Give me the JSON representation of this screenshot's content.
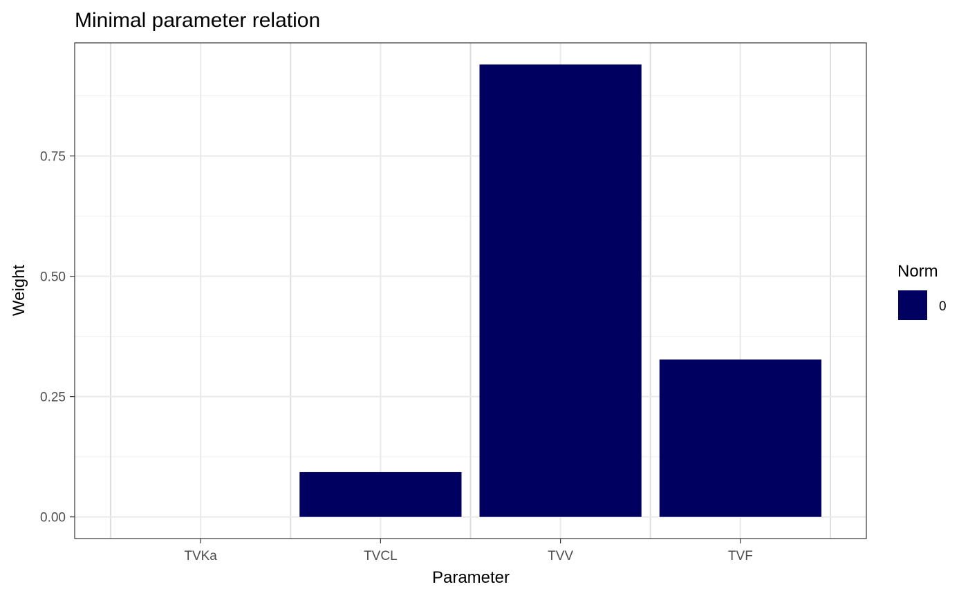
{
  "chart_data": {
    "type": "bar",
    "title": "Minimal parameter relation",
    "xlabel": "Parameter",
    "ylabel": "Weight",
    "categories": [
      "TVKa",
      "TVCL",
      "TVV",
      "TVF"
    ],
    "series": [
      {
        "name": "0",
        "values": [
          0.0,
          0.093,
          0.94,
          0.327
        ]
      }
    ],
    "ylim": [
      -0.045,
      0.985
    ],
    "yticks": [
      0.0,
      0.25,
      0.5,
      0.75
    ],
    "ytick_labels": [
      "0.00",
      "0.25",
      "0.50",
      "0.75"
    ],
    "grid": true,
    "bar_color": "#000060",
    "legend": {
      "title": "Norm",
      "position": "right",
      "items": [
        "0"
      ]
    }
  }
}
